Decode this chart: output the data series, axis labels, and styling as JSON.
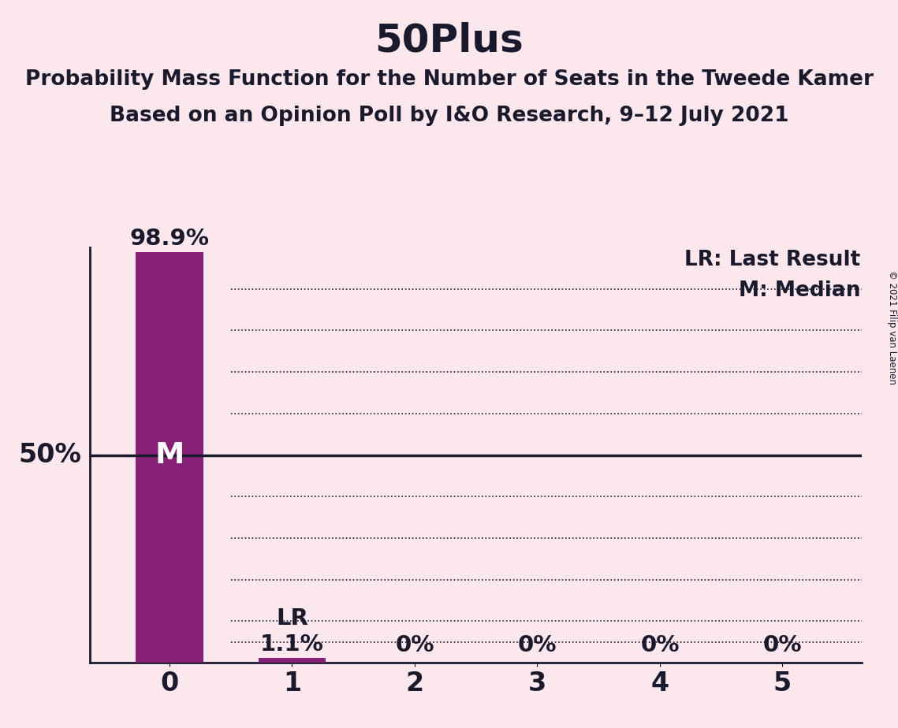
{
  "title": "50Plus",
  "subtitle1": "Probability Mass Function for the Number of Seats in the Tweede Kamer",
  "subtitle2": "Based on an Opinion Poll by I&O Research, 9–12 July 2021",
  "copyright": "© 2021 Filip van Laenen",
  "categories": [
    0,
    1,
    2,
    3,
    4,
    5
  ],
  "values": [
    98.9,
    1.1,
    0.0,
    0.0,
    0.0,
    0.0
  ],
  "bar_color": "#872178",
  "background_color": "#fce8ec",
  "text_color": "#1a1a2e",
  "bar_labels": [
    "98.9%",
    "1.1%",
    "0%",
    "0%",
    "0%",
    "0%"
  ],
  "median_seat": 0,
  "last_result_seat": 1,
  "median_label": "M",
  "lr_label": "LR",
  "legend_lr": "LR: Last Result",
  "legend_m": "M: Median",
  "ylabel_50": "50%",
  "ylim": [
    0,
    100
  ],
  "fifty_line": 50,
  "dotted_lines": [
    10,
    20,
    30,
    40,
    60,
    70,
    80,
    90
  ],
  "title_fontsize": 36,
  "subtitle_fontsize": 19,
  "bar_label_fontsize": 21,
  "tick_fontsize": 24,
  "legend_fontsize": 19,
  "fifty_label_fontsize": 24,
  "lr_label_fontsize": 21
}
